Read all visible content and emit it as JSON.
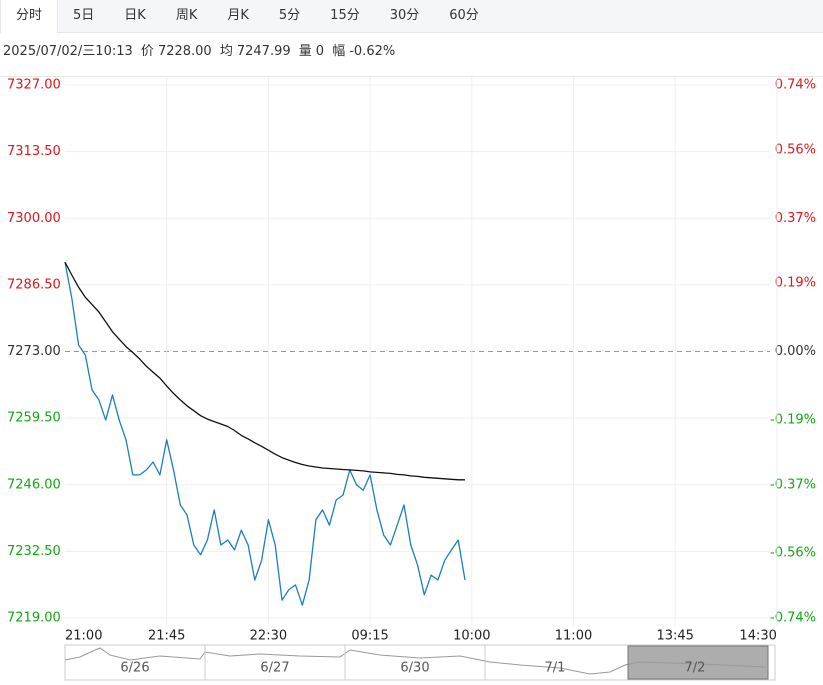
{
  "tabs": [
    "分时",
    "5日",
    "日K",
    "周K",
    "月K",
    "5分",
    "15分",
    "30分",
    "60分"
  ],
  "info": {
    "datetime": "2025/07/02/三10:13",
    "price": "7228.00",
    "average": "7247.99",
    "volume_label": "量",
    "volume": "0",
    "change_label": "幅",
    "change": "-0.62%"
  },
  "chart_data": {
    "type": "line",
    "x": [
      "21:00",
      "21:03",
      "21:06",
      "21:09",
      "21:12",
      "21:15",
      "21:18",
      "21:21",
      "21:24",
      "21:27",
      "21:30",
      "21:33",
      "21:36",
      "21:39",
      "21:42",
      "21:45",
      "21:48",
      "21:51",
      "21:54",
      "21:57",
      "22:00",
      "22:03",
      "22:06",
      "22:09",
      "22:12",
      "22:15",
      "22:18",
      "22:21",
      "22:24",
      "22:27",
      "22:30",
      "22:33",
      "22:36",
      "22:39",
      "22:42",
      "22:45",
      "22:48",
      "22:51",
      "22:54",
      "22:57",
      "09:00",
      "09:03",
      "09:06",
      "09:09",
      "09:12",
      "09:15",
      "09:18",
      "09:21",
      "09:24",
      "09:27",
      "09:30",
      "09:33",
      "09:36",
      "09:39",
      "09:42",
      "09:45",
      "09:48",
      "09:51",
      "09:54",
      "09:57"
    ],
    "series": [
      {
        "name": "价",
        "color": "#1a7fc1",
        "values": [
          7291.1,
          7283.8,
          7274.3,
          7272.3,
          7265.2,
          7263.2,
          7259.1,
          7264.2,
          7259.1,
          7255.1,
          7248.0,
          7248.0,
          7249.0,
          7250.6,
          7248.0,
          7255.1,
          7249.0,
          7241.9,
          7239.9,
          7233.8,
          7231.8,
          7234.8,
          7240.9,
          7233.8,
          7234.8,
          7232.8,
          7236.8,
          7233.8,
          7226.7,
          7230.7,
          7238.9,
          7233.8,
          7222.6,
          7224.7,
          7225.7,
          7221.6,
          7226.7,
          7238.9,
          7240.9,
          7237.8,
          7242.9,
          7243.9,
          7249.0,
          7246.0,
          7244.9,
          7248.0,
          7240.9,
          7235.8,
          7233.8,
          7237.8,
          7241.9,
          7233.8,
          7229.7,
          7223.7,
          7227.7,
          7226.7,
          7230.7,
          7232.8,
          7234.8,
          7226.7
        ]
      },
      {
        "name": "均",
        "color": "#111111",
        "values": [
          7291.1,
          7288.5,
          7286.0,
          7284.0,
          7282.5,
          7281.0,
          7279.0,
          7277.0,
          7275.5,
          7274.0,
          7272.8,
          7271.5,
          7270.0,
          7268.8,
          7267.6,
          7266.0,
          7264.5,
          7263.2,
          7262.0,
          7261.0,
          7260.0,
          7259.3,
          7258.8,
          7258.3,
          7257.8,
          7257.0,
          7256.0,
          7255.3,
          7254.5,
          7253.8,
          7253.0,
          7252.2,
          7251.5,
          7251.0,
          7250.5,
          7250.1,
          7249.8,
          7249.6,
          7249.4,
          7249.3,
          7249.2,
          7249.1,
          7249.0,
          7248.9,
          7248.8,
          7248.6,
          7248.5,
          7248.4,
          7248.3,
          7248.1,
          7248.0,
          7247.8,
          7247.7,
          7247.5,
          7247.4,
          7247.3,
          7247.2,
          7247.1,
          7247.0,
          7247.0
        ]
      }
    ],
    "xlim": [
      "21:00",
      "14:30"
    ],
    "xticks": [
      "21:00",
      "21:45",
      "22:30",
      "09:15",
      "10:00",
      "11:00",
      "13:45",
      "14:30"
    ],
    "ylim": [
      7219,
      7327
    ],
    "yticks": [
      {
        "value": 7327,
        "label": "7327.00"
      },
      {
        "value": 7313.5,
        "label": "7313.50"
      },
      {
        "value": 7300,
        "label": "7300.00"
      },
      {
        "value": 7286.5,
        "label": "7286.50"
      },
      {
        "value": 7273,
        "label": "7273.00"
      },
      {
        "value": 7259.5,
        "label": "7259.50"
      },
      {
        "value": 7246,
        "label": "7246.00"
      },
      {
        "value": 7232.5,
        "label": "7232.50"
      },
      {
        "value": 7219,
        "label": "7219.00"
      }
    ],
    "y2lim": [
      -0.74,
      0.74
    ],
    "y2ticks": [
      {
        "value": 0.74,
        "label": "0.74%"
      },
      {
        "value": 0.56,
        "label": "0.56%"
      },
      {
        "value": 0.37,
        "label": "0.37%"
      },
      {
        "value": 0.19,
        "label": "0.19%"
      },
      {
        "value": 0,
        "label": "0.00%"
      },
      {
        "value": -0.19,
        "label": "-0.19%"
      },
      {
        "value": -0.37,
        "label": "-0.37%"
      },
      {
        "value": -0.56,
        "label": "-0.56%"
      },
      {
        "value": -0.74,
        "label": "-0.74%"
      }
    ],
    "reference_line": 7273,
    "grid": true,
    "up_color": "#e0161b",
    "down_color": "#12a812",
    "navigator": [
      "6/26",
      "6/27",
      "6/30",
      "7/1",
      "7/2"
    ]
  }
}
